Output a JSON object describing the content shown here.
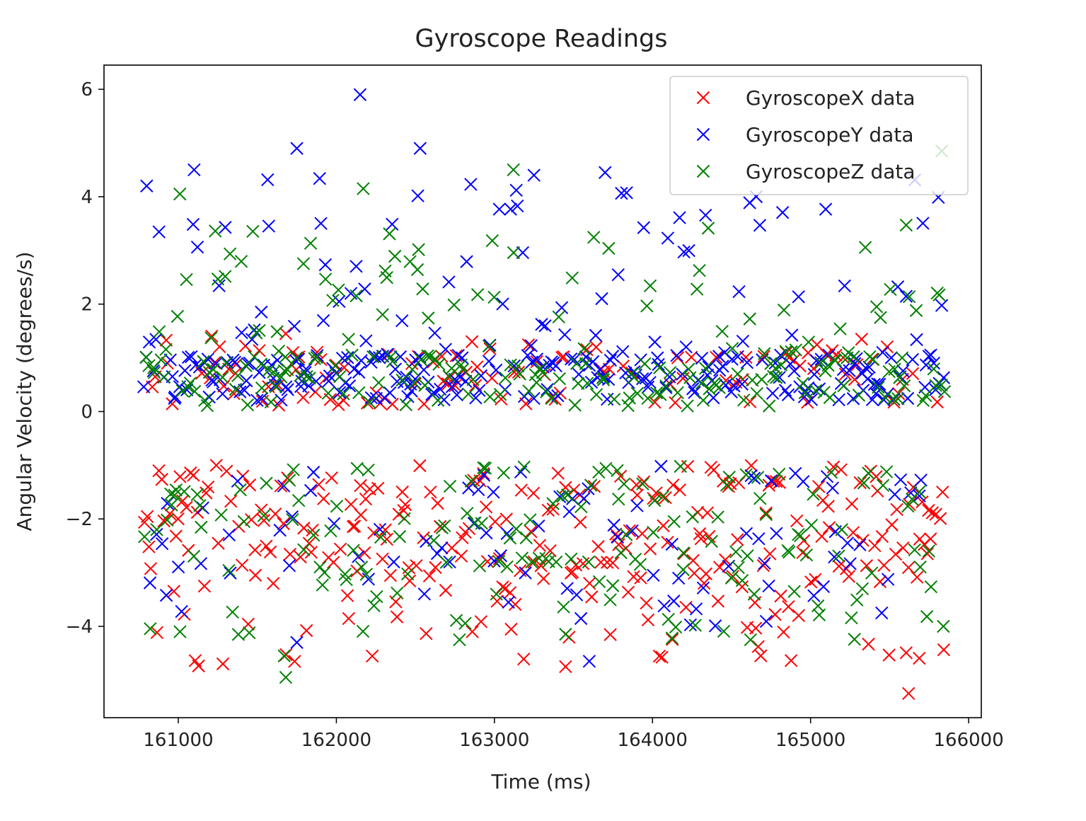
{
  "chart_data": {
    "type": "scatter",
    "title": "Gyroscope Readings",
    "xlabel": "Time (ms)",
    "ylabel": "Angular Velocity (degrees/s)",
    "xlim": [
      160530,
      166080
    ],
    "ylim": [
      -5.7,
      6.45
    ],
    "x_ticks": [
      161000,
      162000,
      163000,
      164000,
      165000,
      166000
    ],
    "y_ticks": [
      -4,
      -2,
      0,
      2,
      4,
      6
    ],
    "y_tick_labels": [
      "−4",
      "−2",
      "0",
      "2",
      "4",
      "6"
    ],
    "x_range_data": [
      160780,
      165850
    ],
    "grid": false,
    "legend": "top-right",
    "marker": "x",
    "series": [
      {
        "name": "GyroscopeX data",
        "color": "#ff0000",
        "seed": 11,
        "pos_ratio": 0.32,
        "pos_range": [
          0.0,
          1.45
        ],
        "neg_range": [
          -4.75,
          -1.0
        ],
        "highlights": [
          [
            165620,
            -5.25
          ],
          [
            163450,
            -4.75
          ],
          [
            162860,
            -4.1
          ],
          [
            161680,
            1.45
          ]
        ]
      },
      {
        "name": "GyroscopeY data",
        "color": "#0000ff",
        "seed": 23,
        "pos_ratio": 0.78,
        "pos_range": [
          0.1,
          4.6
        ],
        "neg_range": [
          -4.0,
          -1.0
        ],
        "highlights": [
          [
            162150,
            5.9
          ],
          [
            162530,
            4.9
          ],
          [
            161750,
            4.9
          ],
          [
            160800,
            4.2
          ],
          [
            161100,
            4.5
          ],
          [
            163700,
            4.45
          ],
          [
            163250,
            4.4
          ],
          [
            163600,
            -4.65
          ],
          [
            161750,
            -4.3
          ],
          [
            165450,
            -3.75
          ]
        ]
      },
      {
        "name": "GyroscopeZ data",
        "color": "#008000",
        "seed": 37,
        "pos_ratio": 0.6,
        "pos_range": [
          0.0,
          3.5
        ],
        "neg_range": [
          -4.3,
          -1.0
        ],
        "highlights": [
          [
            161680,
            -4.95
          ],
          [
            161670,
            -4.55
          ],
          [
            161380,
            -4.15
          ],
          [
            163120,
            4.5
          ],
          [
            162170,
            4.15
          ],
          [
            161010,
            4.05
          ],
          [
            165830,
            4.85
          ],
          [
            165840,
            -4.0
          ],
          [
            164620,
            -4.25
          ]
        ]
      }
    ]
  }
}
